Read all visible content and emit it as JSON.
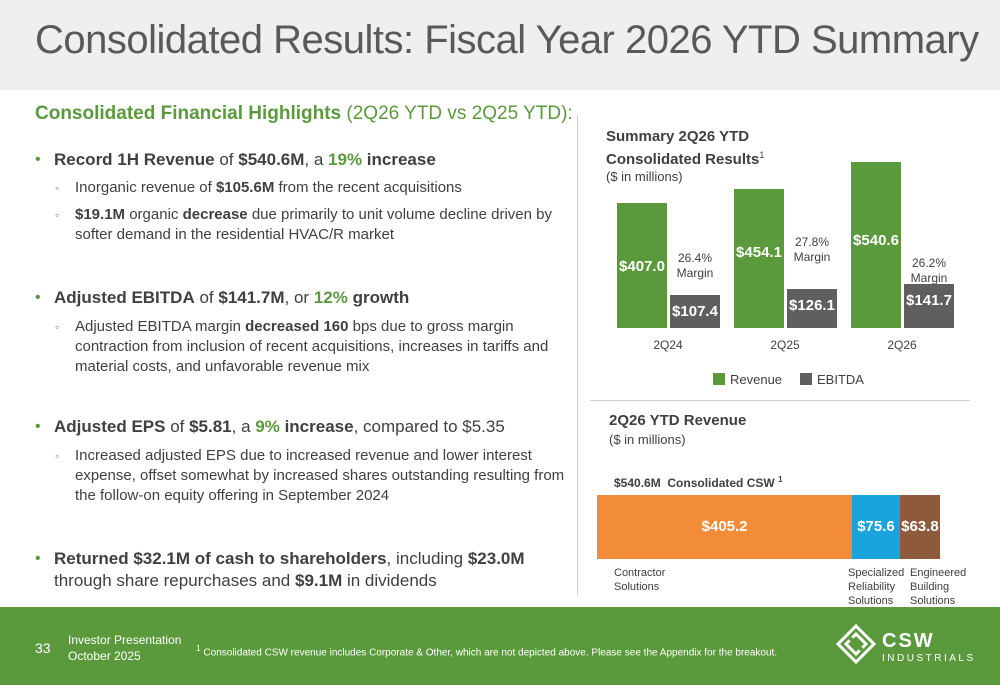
{
  "header": {
    "title": "Consolidated Results: Fiscal Year 2026 YTD Summary"
  },
  "highlights": {
    "bold": "Consolidated Financial Highlights",
    "rest": " (2Q26 YTD vs 2Q25 YTD):"
  },
  "bullets": {
    "b1": {
      "p1": "Record 1H Revenue",
      "p2": " of ",
      "p3": "$540.6M",
      "p4": ", a ",
      "p5": "19%",
      "p6": " increase"
    },
    "b1s1": {
      "p1": "Inorganic revenue of ",
      "p2": "$105.6M",
      "p3": " from the recent acquisitions"
    },
    "b1s2": {
      "p1": "$19.1M",
      "p2": " organic ",
      "p3": "decrease",
      "p4": " due primarily to unit volume decline driven by softer demand in the residential HVAC/R market"
    },
    "b2": {
      "p1": "Adjusted EBITDA",
      "p2": " of ",
      "p3": "$141.7M",
      "p4": ", or ",
      "p5": "12%",
      "p6": " growth"
    },
    "b2s1": {
      "p1": "Adjusted EBITDA margin ",
      "p2": "decreased 160",
      "p3": " bps due to gross margin contraction from inclusion of recent acquisitions, increases in tariffs and material costs, and unfavorable revenue mix"
    },
    "b3": {
      "p1": "Adjusted EPS",
      "p2": " of ",
      "p3": "$5.81",
      "p4": ", a ",
      "p5": "9%",
      "p6": " increase",
      "p7": ", compared to $5.35"
    },
    "b3s1": {
      "p1": "Increased adjusted EPS due to increased revenue and lower interest expense, offset somewhat by increased shares outstanding resulting from the follow-on equity offering in September 2024"
    },
    "b4": {
      "p1": "Returned $32.1M of cash to shareholders",
      "p2": ", including ",
      "p3": "$23.0M",
      "p4": " through share repurchases and ",
      "p5": "$9.1M",
      "p6": " in dividends"
    }
  },
  "summary_chart": {
    "title_line1": "Summary 2Q26 YTD",
    "title_line2": "Consolidated Results",
    "title_sup": "1",
    "subtitle": "($ in millions)",
    "legend_revenue": "Revenue",
    "legend_ebitda": "EBITDA",
    "colors": {
      "revenue": "#5a9a3c",
      "ebitda": "#5f5f5f"
    }
  },
  "revenue_chart": {
    "title": "2Q26 YTD Revenue",
    "subtitle": "($ in millions)",
    "total_label": "$540.6M",
    "total_desc": "Consolidated CSW",
    "total_sup": "1",
    "colors": {
      "contractor": "#f28c38",
      "specialized": "#1aa3dc",
      "engineered": "#8e5a3c"
    }
  },
  "chart_data": [
    {
      "type": "bar",
      "title": "Summary 2Q26 YTD Consolidated Results",
      "categories": [
        "2Q24",
        "2Q25",
        "2Q26"
      ],
      "series": [
        {
          "name": "Revenue",
          "values": [
            407.0,
            454.1,
            540.6
          ],
          "labels": [
            "$407.0",
            "$454.1",
            "$540.6"
          ]
        },
        {
          "name": "EBITDA",
          "values": [
            107.4,
            126.1,
            141.7
          ],
          "labels": [
            "$107.4",
            "$126.1",
            "$141.7"
          ]
        }
      ],
      "margins": [
        "26.4%",
        "27.8%",
        "26.2%"
      ],
      "margin_word": "Margin",
      "ylim": [
        0,
        540.6
      ]
    },
    {
      "type": "bar",
      "title": "2Q26 YTD Revenue",
      "categories": [
        "Contractor Solutions",
        "Specialized Reliability Solutions",
        "Engineered Building Solutions"
      ],
      "category_lines": [
        [
          "Contractor",
          "Solutions"
        ],
        [
          "Specialized",
          "Reliability",
          "Solutions"
        ],
        [
          "Engineered",
          "Building",
          "Solutions"
        ]
      ],
      "values": [
        405.2,
        75.6,
        63.8
      ],
      "labels": [
        "$405.2",
        "$75.6",
        "$63.8"
      ]
    }
  ],
  "footer": {
    "page": "33",
    "line1": "Investor Presentation",
    "line2": "October 2025",
    "footnote_sup": "1",
    "footnote": " Consolidated CSW revenue includes Corporate & Other, which are not depicted above.  Please see the Appendix for the breakout.",
    "logo_main": "CSW",
    "logo_sub": "INDUSTRIALS"
  }
}
